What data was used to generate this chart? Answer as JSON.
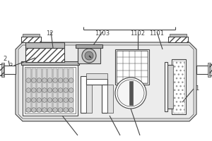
{
  "lc": "#444444",
  "lw": 0.8,
  "fs": 6.0,
  "figsize": [
    3.0,
    2.0
  ],
  "dpi": 100,
  "body_color": "#e8e8e8",
  "inner_color": "#f0f0f0",
  "white": "#ffffff",
  "gray1": "#d0d0d0",
  "gray2": "#b0b0b0",
  "gray3": "#888888"
}
